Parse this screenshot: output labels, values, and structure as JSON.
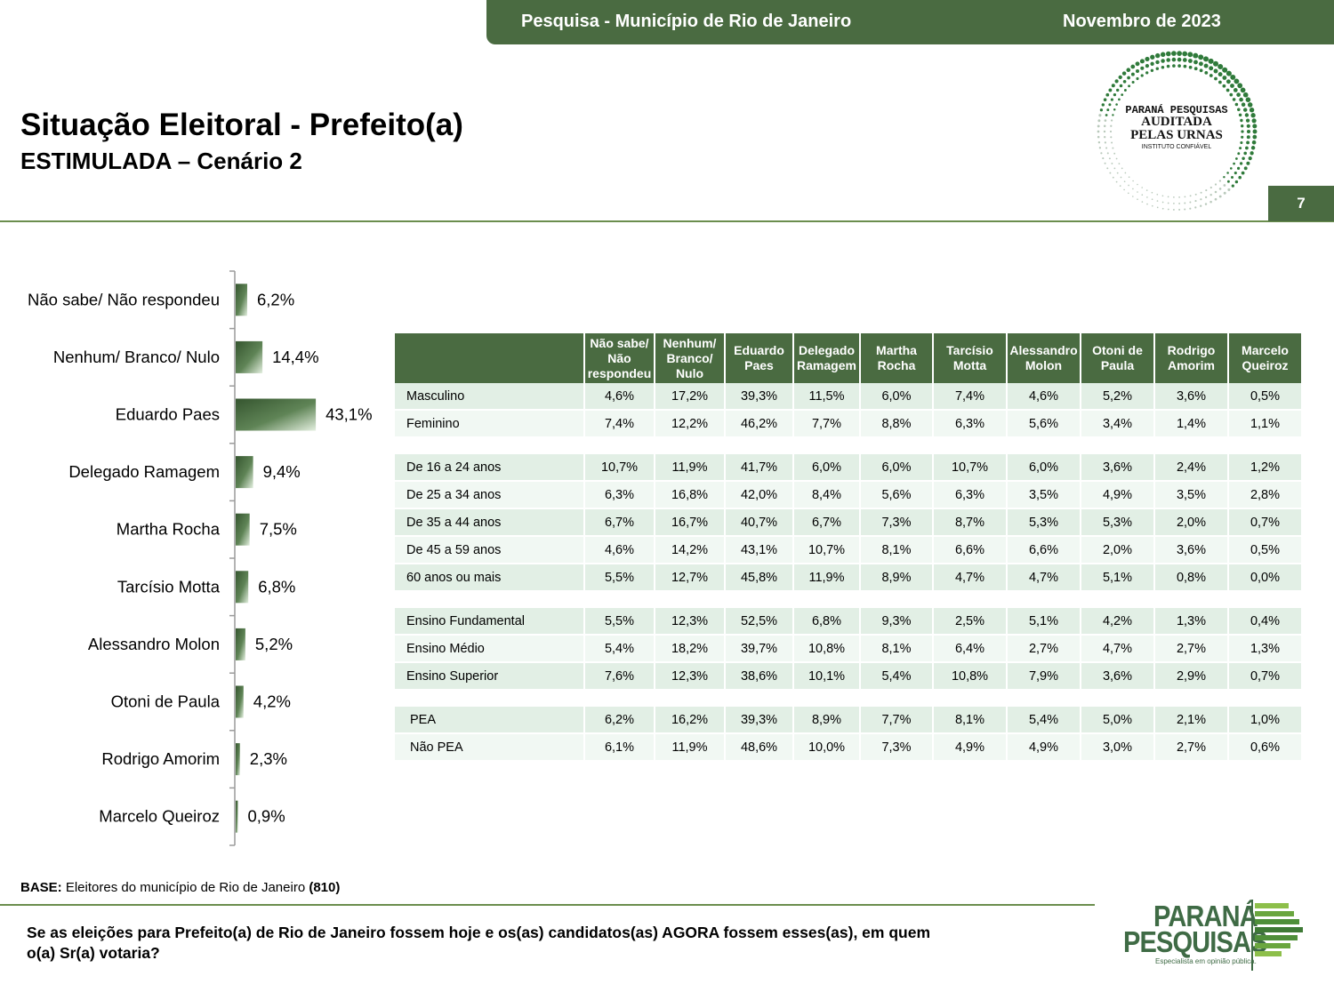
{
  "header": {
    "survey_title": "Pesquisa - Município de Rio de Janeiro",
    "date": "Novembro de 2023"
  },
  "page": {
    "title": "Situação Eleitoral - Prefeito(a)",
    "subtitle": "ESTIMULADA – Cenário 2",
    "number": "7"
  },
  "seal": {
    "line1": "PARANÁ PESQUISAS",
    "line2": "AUDITADA",
    "line3": "PELAS URNAS",
    "line4": "INSTITUTO CONFIÁVEL"
  },
  "colors": {
    "brand_green": "#4a6b41",
    "bar_dark": "#3a5a34",
    "bar_light": "#dcebd6",
    "row_alt": "#e2efe5"
  },
  "chart_data": {
    "type": "bar",
    "orientation": "horizontal",
    "categories": [
      "Não sabe/ Não respondeu",
      "Nenhum/ Branco/ Nulo",
      "Eduardo Paes",
      "Delegado Ramagem",
      "Martha Rocha",
      "Tarcísio Motta",
      "Alessandro Molon",
      "Otoni de Paula",
      "Rodrigo Amorim",
      "Marcelo Queiroz"
    ],
    "values": [
      6.2,
      14.4,
      43.1,
      9.4,
      7.5,
      6.8,
      5.2,
      4.2,
      2.3,
      0.9
    ],
    "value_labels": [
      "6,2%",
      "14,4%",
      "43,1%",
      "9,4%",
      "7,5%",
      "6,8%",
      "5,2%",
      "4,2%",
      "2,3%",
      "0,9%"
    ],
    "unit": "%",
    "grid": false,
    "legend": "none"
  },
  "crosstab": {
    "columns": [
      "Não sabe/ Não respondeu",
      "Nenhum/ Branco/ Nulo",
      "Eduardo Paes",
      "Delegado Ramagem",
      "Martha Rocha",
      "Tarcísio Motta",
      "Alessandro Molon",
      "Otoni de Paula",
      "Rodrigo Amorim",
      "Marcelo Queiroz"
    ],
    "groups": [
      {
        "rows": [
          {
            "label": "Masculino",
            "values": [
              "4,6%",
              "17,2%",
              "39,3%",
              "11,5%",
              "6,0%",
              "7,4%",
              "4,6%",
              "5,2%",
              "3,6%",
              "0,5%"
            ]
          },
          {
            "label": "Feminino",
            "values": [
              "7,4%",
              "12,2%",
              "46,2%",
              "7,7%",
              "8,8%",
              "6,3%",
              "5,6%",
              "3,4%",
              "1,4%",
              "1,1%"
            ]
          }
        ]
      },
      {
        "rows": [
          {
            "label": "De 16 a 24 anos",
            "values": [
              "10,7%",
              "11,9%",
              "41,7%",
              "6,0%",
              "6,0%",
              "10,7%",
              "6,0%",
              "3,6%",
              "2,4%",
              "1,2%"
            ]
          },
          {
            "label": "De 25 a 34 anos",
            "values": [
              "6,3%",
              "16,8%",
              "42,0%",
              "8,4%",
              "5,6%",
              "6,3%",
              "3,5%",
              "4,9%",
              "3,5%",
              "2,8%"
            ]
          },
          {
            "label": "De 35 a 44 anos",
            "values": [
              "6,7%",
              "16,7%",
              "40,7%",
              "6,7%",
              "7,3%",
              "8,7%",
              "5,3%",
              "5,3%",
              "2,0%",
              "0,7%"
            ]
          },
          {
            "label": "De 45 a 59 anos",
            "values": [
              "4,6%",
              "14,2%",
              "43,1%",
              "10,7%",
              "8,1%",
              "6,6%",
              "6,6%",
              "2,0%",
              "3,6%",
              "0,5%"
            ]
          },
          {
            "label": "60 anos ou mais",
            "values": [
              "5,5%",
              "12,7%",
              "45,8%",
              "11,9%",
              "8,9%",
              "4,7%",
              "4,7%",
              "5,1%",
              "0,8%",
              "0,0%"
            ]
          }
        ]
      },
      {
        "rows": [
          {
            "label": "Ensino Fundamental",
            "values": [
              "5,5%",
              "12,3%",
              "52,5%",
              "6,8%",
              "9,3%",
              "2,5%",
              "5,1%",
              "4,2%",
              "1,3%",
              "0,4%"
            ]
          },
          {
            "label": "Ensino Médio",
            "values": [
              "5,4%",
              "18,2%",
              "39,7%",
              "10,8%",
              "8,1%",
              "6,4%",
              "2,7%",
              "4,7%",
              "2,7%",
              "1,3%"
            ]
          },
          {
            "label": "Ensino Superior",
            "values": [
              "7,6%",
              "12,3%",
              "38,6%",
              "10,1%",
              "5,4%",
              "10,8%",
              "7,9%",
              "3,6%",
              "2,9%",
              "0,7%"
            ]
          }
        ]
      },
      {
        "rows": [
          {
            "label": "PEA",
            "values": [
              "6,2%",
              "16,2%",
              "39,3%",
              "8,9%",
              "7,7%",
              "8,1%",
              "5,4%",
              "5,0%",
              "2,1%",
              "1,0%"
            ]
          },
          {
            "label": "Não PEA",
            "values": [
              "6,1%",
              "11,9%",
              "48,6%",
              "10,0%",
              "7,3%",
              "4,9%",
              "4,9%",
              "3,0%",
              "2,7%",
              "0,6%"
            ]
          }
        ]
      }
    ]
  },
  "footer": {
    "base_label": "BASE:",
    "base_text": " Eleitores do município de Rio de Janeiro ",
    "base_count": "(810)",
    "question": "Se as eleições para Prefeito(a) de Rio de Janeiro fossem hoje e os(as) candidatos(as) AGORA fossem esses(as), em quem o(a) Sr(a) votaria?"
  },
  "brand": {
    "line1": "PARANÁ",
    "line2": "PESQUISAS",
    "tagline": "Especialista em opinião pública."
  }
}
